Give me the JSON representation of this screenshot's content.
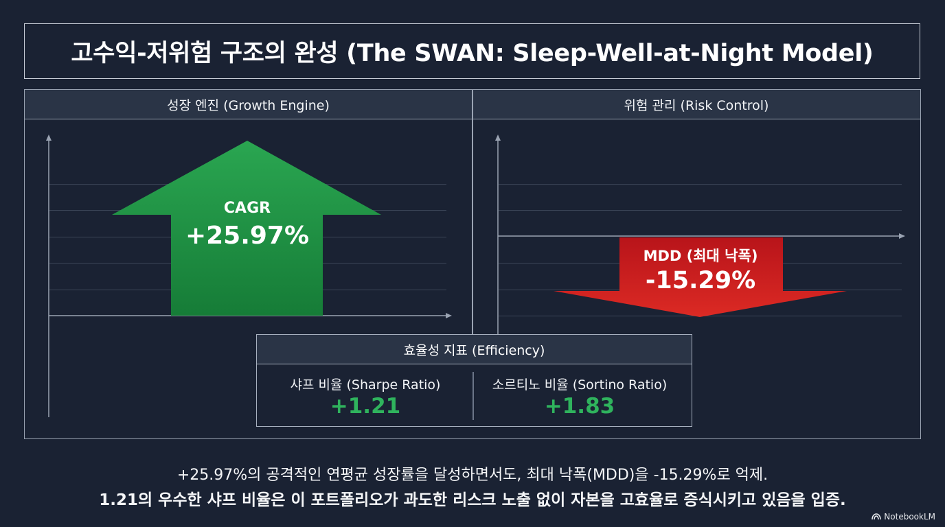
{
  "title": "고수익-저위험 구조의 완성 (The SWAN: Sleep-Well-at-Night Model)",
  "growth": {
    "header": "성장 엔진 (Growth Engine)",
    "metric_label": "CAGR",
    "metric_value": "+25.97%",
    "color": "#1f9a45"
  },
  "risk": {
    "header": "위험 관리 (Risk Control)",
    "metric_label": "MDD (최대 낙폭)",
    "metric_value": "-15.29%",
    "color": "#c0161c"
  },
  "efficiency": {
    "header": "효율성 지표 (Efficiency)",
    "sharpe_label": "샤프 비율 (Sharpe Ratio)",
    "sharpe_value": "+1.21",
    "sortino_label": "소르티노 비율 (Sortino Ratio)",
    "sortino_value": "+1.83",
    "value_color": "#2fb35d"
  },
  "summary": {
    "line1": "+25.97%의 공격적인 연평균 성장률을 달성하면서도, 최대 낙폭(MDD)을 -15.29%로 억제.",
    "line2": "1.21의 우수한 샤프 비율은 이 포트폴리오가 과도한 리스크 노출 없이 자본을 고효율로 증식시키고 있음을 입증."
  },
  "brand": {
    "name": "NotebookLM",
    "icon": "notebooklm-logo-icon"
  }
}
